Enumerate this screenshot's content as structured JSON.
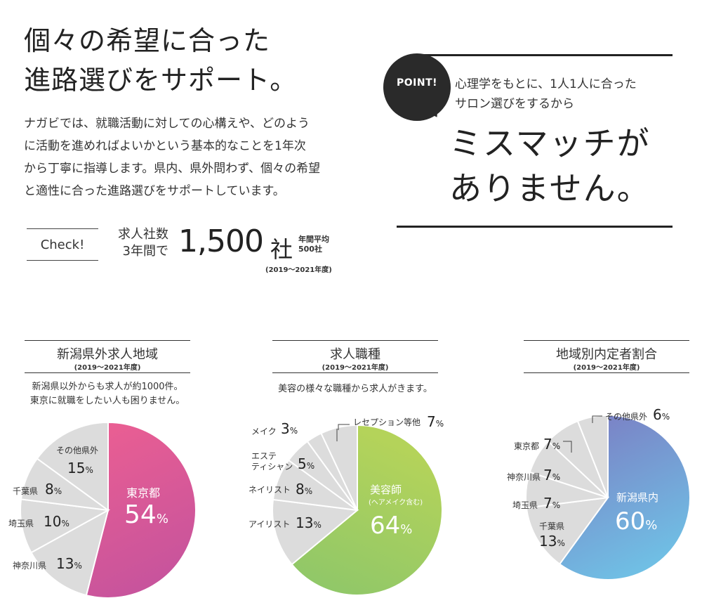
{
  "intro": {
    "headline_line1": "個々の希望に合った",
    "headline_line2": "進路選びをサポート。",
    "body_line1": "ナガビでは、就職活動に対しての心構えや、どのよう",
    "body_line2": "に活動を進めればよいかという基本的なことを1年次",
    "body_line3": "から丁寧に指導します。県内、県外問わず、個々の希望",
    "body_line4": "と適性に合った進路選びをサポートしています。"
  },
  "check": {
    "label": "Check!",
    "desc_line1": "求人社数",
    "desc_line2": "3年間で",
    "number": "1,500",
    "unit": "社",
    "avg_line1": "年間平均",
    "avg_line2": "500社",
    "period": "(2019〜2021年度)"
  },
  "point": {
    "badge": "POINT!",
    "sub_line1": "心理学をもとに、1人1人に合った",
    "sub_line2": "サロン選びをするから",
    "big_line1": "ミスマッチが",
    "big_line2": "ありません。"
  },
  "colors": {
    "gray_slice": "#dcdcdc",
    "tokyo_grad": [
      "#ec5f92",
      "#c8549c"
    ],
    "biyoushi_grad": [
      "#b4d35a",
      "#8cc66a"
    ],
    "niigata_grad": [
      "#7b7fc4",
      "#6fc2e6"
    ]
  },
  "chart_data": [
    {
      "type": "pie",
      "title": "新潟県外求人地域",
      "period": "(2019〜2021年度)",
      "desc_line1": "新潟県以外からも求人が約1000件。",
      "desc_line2": "東京に就職をしたい人も困りません。",
      "slices": [
        {
          "label": "東京都",
          "value": 54,
          "value_text": "54",
          "unit": "%"
        },
        {
          "label": "神奈川県",
          "value": 13,
          "value_text": "13",
          "unit": "%"
        },
        {
          "label": "埼玉県",
          "value": 10,
          "value_text": "10",
          "unit": "%"
        },
        {
          "label": "千葉県",
          "value": 8,
          "value_text": "8",
          "unit": "%"
        },
        {
          "label": "その他県外",
          "value": 15,
          "value_text": "15",
          "unit": "%"
        }
      ]
    },
    {
      "type": "pie",
      "title": "求人職種",
      "period": "(2019〜2021年度)",
      "desc_line1": "美容の様々な職種から求人がきます。",
      "slices": [
        {
          "label": "美容師",
          "sublabel": "(ヘアメイク含む)",
          "value": 64,
          "value_text": "64",
          "unit": "%"
        },
        {
          "label": "アイリスト",
          "value": 13,
          "value_text": "13",
          "unit": "%"
        },
        {
          "label": "ネイリスト",
          "value": 8,
          "value_text": "8",
          "unit": "%"
        },
        {
          "label_line1": "エステ",
          "label_line2": "ティシャン",
          "value": 5,
          "value_text": "5",
          "unit": "%"
        },
        {
          "label": "メイク",
          "value": 3,
          "value_text": "3",
          "unit": "%"
        },
        {
          "label": "レセプション等他",
          "value": 7,
          "value_text": "7",
          "unit": "%"
        }
      ]
    },
    {
      "type": "pie",
      "title": "地域別内定者割合",
      "period": "(2019〜2021年度)",
      "slices": [
        {
          "label": "新潟県内",
          "value": 60,
          "value_text": "60",
          "unit": "%"
        },
        {
          "label": "千葉県",
          "value": 13,
          "value_text": "13",
          "unit": "%"
        },
        {
          "label": "埼玉県",
          "value": 7,
          "value_text": "7",
          "unit": "%"
        },
        {
          "label": "神奈川県",
          "value": 7,
          "value_text": "7",
          "unit": "%"
        },
        {
          "label": "東京都",
          "value": 7,
          "value_text": "7",
          "unit": "%"
        },
        {
          "label": "その他県外",
          "value": 6,
          "value_text": "6",
          "unit": "%"
        }
      ]
    }
  ]
}
